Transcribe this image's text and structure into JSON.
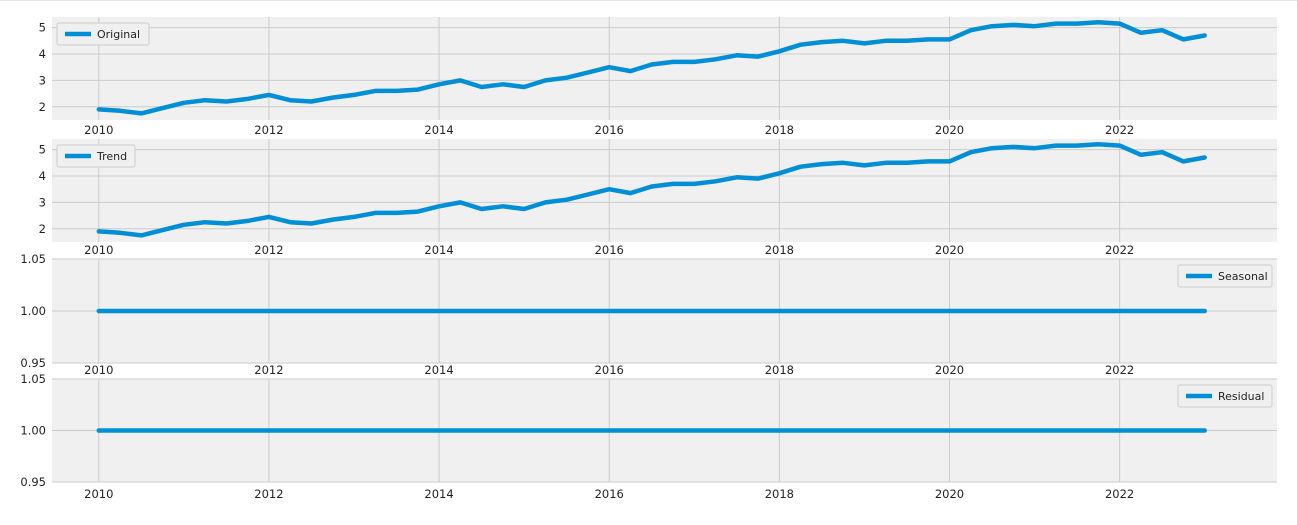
{
  "chart_data": [
    {
      "type": "line",
      "series": [
        {
          "name": "Original",
          "x": [
            "2010-01",
            "2010-04",
            "2010-07",
            "2010-10",
            "2011-01",
            "2011-04",
            "2011-07",
            "2011-10",
            "2012-01",
            "2012-04",
            "2012-07",
            "2012-10",
            "2013-01",
            "2013-04",
            "2013-07",
            "2013-10",
            "2014-01",
            "2014-04",
            "2014-07",
            "2014-10",
            "2015-01",
            "2015-04",
            "2015-07",
            "2015-10",
            "2016-01",
            "2016-04",
            "2016-07",
            "2016-10",
            "2017-01",
            "2017-04",
            "2017-07",
            "2017-10",
            "2018-01",
            "2018-04",
            "2018-07",
            "2018-10",
            "2019-01",
            "2019-04",
            "2019-07",
            "2019-10",
            "2020-01",
            "2020-04",
            "2020-07",
            "2020-10",
            "2021-01",
            "2021-04",
            "2021-07",
            "2021-10",
            "2022-01",
            "2022-04",
            "2022-07",
            "2022-10",
            "2023-01"
          ],
          "values": [
            1.9,
            1.85,
            1.75,
            1.95,
            2.15,
            2.25,
            2.2,
            2.3,
            2.45,
            2.25,
            2.2,
            2.35,
            2.45,
            2.6,
            2.6,
            2.65,
            2.85,
            3.0,
            2.75,
            2.85,
            2.75,
            3.0,
            3.1,
            3.3,
            3.5,
            3.35,
            3.6,
            3.7,
            3.7,
            3.8,
            3.95,
            3.9,
            4.1,
            4.35,
            4.45,
            4.5,
            4.4,
            4.5,
            4.5,
            4.55,
            4.55,
            4.9,
            5.05,
            5.1,
            5.05,
            5.15,
            5.15,
            5.2,
            5.15,
            4.8,
            4.9,
            4.55,
            4.7
          ]
        }
      ],
      "ylim": [
        1.5,
        5.4
      ],
      "yticks": [
        2,
        3,
        4,
        5
      ],
      "xticks": [
        "2010",
        "2012",
        "2014",
        "2016",
        "2018",
        "2020",
        "2022"
      ],
      "grid": true,
      "legend": "top-left"
    },
    {
      "type": "line",
      "series": [
        {
          "name": "Trend",
          "x": [
            "2010-01",
            "2010-04",
            "2010-07",
            "2010-10",
            "2011-01",
            "2011-04",
            "2011-07",
            "2011-10",
            "2012-01",
            "2012-04",
            "2012-07",
            "2012-10",
            "2013-01",
            "2013-04",
            "2013-07",
            "2013-10",
            "2014-01",
            "2014-04",
            "2014-07",
            "2014-10",
            "2015-01",
            "2015-04",
            "2015-07",
            "2015-10",
            "2016-01",
            "2016-04",
            "2016-07",
            "2016-10",
            "2017-01",
            "2017-04",
            "2017-07",
            "2017-10",
            "2018-01",
            "2018-04",
            "2018-07",
            "2018-10",
            "2019-01",
            "2019-04",
            "2019-07",
            "2019-10",
            "2020-01",
            "2020-04",
            "2020-07",
            "2020-10",
            "2021-01",
            "2021-04",
            "2021-07",
            "2021-10",
            "2022-01",
            "2022-04",
            "2022-07",
            "2022-10",
            "2023-01"
          ],
          "values": [
            1.9,
            1.85,
            1.75,
            1.95,
            2.15,
            2.25,
            2.2,
            2.3,
            2.45,
            2.25,
            2.2,
            2.35,
            2.45,
            2.6,
            2.6,
            2.65,
            2.85,
            3.0,
            2.75,
            2.85,
            2.75,
            3.0,
            3.1,
            3.3,
            3.5,
            3.35,
            3.6,
            3.7,
            3.7,
            3.8,
            3.95,
            3.9,
            4.1,
            4.35,
            4.45,
            4.5,
            4.4,
            4.5,
            4.5,
            4.55,
            4.55,
            4.9,
            5.05,
            5.1,
            5.05,
            5.15,
            5.15,
            5.2,
            5.15,
            4.8,
            4.9,
            4.55,
            4.7
          ]
        }
      ],
      "ylim": [
        1.5,
        5.4
      ],
      "yticks": [
        2,
        3,
        4,
        5
      ],
      "xticks": [
        "2010",
        "2012",
        "2014",
        "2016",
        "2018",
        "2020",
        "2022"
      ],
      "grid": true,
      "legend": "top-left"
    },
    {
      "type": "line",
      "series": [
        {
          "name": "Seasonal",
          "x": [
            "2010-01",
            "2023-01"
          ],
          "values": [
            1.0,
            1.0
          ]
        }
      ],
      "ylim": [
        0.95,
        1.05
      ],
      "yticks": [
        "0.95",
        "1.00",
        "1.05"
      ],
      "xticks": [
        "2010",
        "2012",
        "2014",
        "2016",
        "2018",
        "2020",
        "2022"
      ],
      "grid": true,
      "legend": "top-right"
    },
    {
      "type": "line",
      "series": [
        {
          "name": "Residual",
          "x": [
            "2010-01",
            "2023-01"
          ],
          "values": [
            1.0,
            1.0
          ]
        }
      ],
      "ylim": [
        0.95,
        1.05
      ],
      "yticks": [
        "0.95",
        "1.00",
        "1.05"
      ],
      "xticks": [
        "2010",
        "2012",
        "2014",
        "2016",
        "2018",
        "2020",
        "2022"
      ],
      "grid": true,
      "legend": "top-right"
    }
  ],
  "colors": {
    "line": "#008fd5",
    "plot_bg": "#f0f0f0",
    "grid": "#cbcbcb",
    "text": "#222222"
  }
}
